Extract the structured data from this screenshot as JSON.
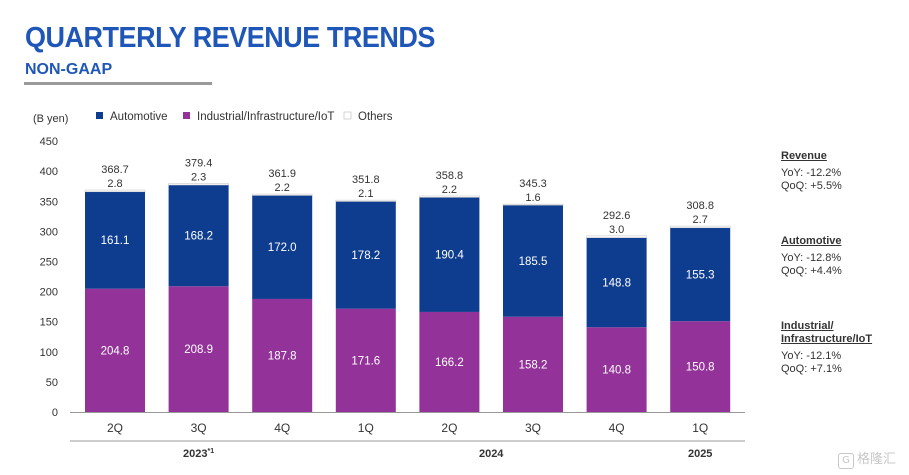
{
  "header": {
    "title": "QUARTERLY REVENUE TRENDS",
    "subtitle": "NON-GAAP"
  },
  "chart_data": {
    "type": "bar",
    "stacked": true,
    "unit_label": "(B yen)",
    "ylim": [
      0,
      450
    ],
    "yticks": [
      "0",
      "50",
      "100",
      "150",
      "200",
      "250",
      "300",
      "350",
      "400",
      "450"
    ],
    "categories": [
      "2Q",
      "3Q",
      "4Q",
      "1Q",
      "2Q",
      "3Q",
      "4Q",
      "1Q"
    ],
    "groups": [
      {
        "label": "2023*1",
        "label_sup": "*1",
        "label_main": "2023",
        "start": 0,
        "end": 2
      },
      {
        "label": "2024",
        "start": 3,
        "end": 6
      },
      {
        "label": "2025",
        "start": 7,
        "end": 7
      }
    ],
    "series": [
      {
        "name": "Industrial/Infrastructure/IoT",
        "color": "#933399",
        "values": [
          204.8,
          208.9,
          187.8,
          171.6,
          166.2,
          158.2,
          140.8,
          150.8
        ]
      },
      {
        "name": "Automotive",
        "color": "#0e3d8f",
        "values": [
          161.1,
          168.2,
          172.0,
          178.2,
          190.4,
          185.5,
          148.8,
          155.3
        ]
      },
      {
        "name": "Others",
        "color": "#ffffff",
        "values": [
          2.8,
          2.3,
          2.2,
          2.1,
          2.2,
          1.6,
          3.0,
          2.7
        ]
      }
    ],
    "legend": [
      "Automotive",
      "Industrial/Infrastructure/IoT",
      "Others"
    ],
    "value_labels": {
      "Industrial/Infrastructure/IoT": [
        "204.8",
        "208.9",
        "187.8",
        "171.6",
        "166.2",
        "158.2",
        "140.8",
        "150.8"
      ],
      "Automotive": [
        "161.1",
        "168.2",
        "172.0",
        "178.2",
        "190.4",
        "185.5",
        "148.8",
        "155.3"
      ],
      "Others": [
        "2.8",
        "2.3",
        "2.2",
        "2.1",
        "2.2",
        "1.6",
        "3.0",
        "2.7"
      ]
    },
    "totals": [
      368.7,
      379.4,
      361.9,
      351.8,
      358.8,
      345.3,
      292.6,
      308.8
    ],
    "total_labels": [
      "368.7",
      "379.4",
      "361.9",
      "351.8",
      "358.8",
      "345.3",
      "292.6",
      "308.8"
    ],
    "legend_position": "top-left",
    "grid": false
  },
  "side_panel": [
    {
      "heading": "Revenue",
      "heading_lines": [
        "Revenue"
      ],
      "lines": [
        "YoY: -12.2%",
        "QoQ: +5.5%"
      ]
    },
    {
      "heading": "Automotive",
      "heading_lines": [
        "Automotive"
      ],
      "lines": [
        "YoY: -12.8%",
        "QoQ: +4.4%"
      ]
    },
    {
      "heading": "Industrial/ Infrastructure/IoT",
      "heading_lines": [
        "Industrial/",
        "Infrastructure/IoT"
      ],
      "lines": [
        "YoY: -12.1%",
        "QoQ: +7.1%"
      ]
    }
  ],
  "watermark": {
    "text": "格隆汇",
    "icon": "G"
  }
}
